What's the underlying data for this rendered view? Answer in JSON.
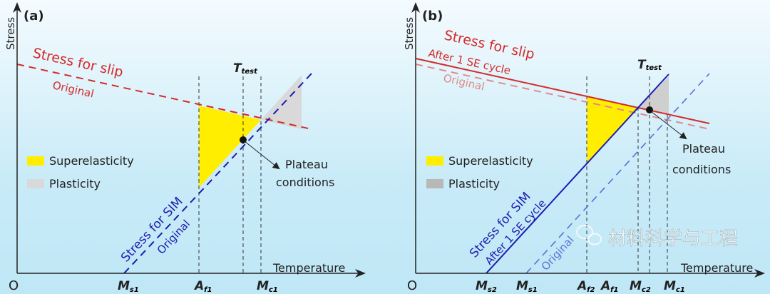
{
  "panel_a": {
    "label": "(a)",
    "y_axis": "Stress",
    "x_axis": "Temperature",
    "origin": "O",
    "slip_label": "Stress for slip",
    "slip_original": "Original",
    "sim_label": "Stress for SIM",
    "sim_original": "Original",
    "t_test": {
      "main": "T",
      "sub": "test"
    },
    "ticks": [
      {
        "main": "M",
        "sub": "s1"
      },
      {
        "main": "A",
        "sub": "f1"
      },
      {
        "main": "M",
        "sub": "c1"
      }
    ],
    "legend": [
      "Superelasticity",
      "Plasticity"
    ],
    "plateau": [
      "Plateau",
      "conditions"
    ]
  },
  "panel_b": {
    "label": "(b)",
    "y_axis": "Stress",
    "x_axis": "Temperature",
    "origin": "O",
    "slip_label": "Stress for slip",
    "slip_after": "After 1 SE cycle",
    "slip_original": "Original",
    "sim_label": "Stress for SIM",
    "sim_after": "After 1 SE cycle",
    "sim_original": "Original",
    "t_test": {
      "main": "T",
      "sub": "test"
    },
    "ticks": [
      {
        "main": "M",
        "sub": "s2"
      },
      {
        "main": "M",
        "sub": "s1"
      },
      {
        "main": "A",
        "sub": "f2"
      },
      {
        "main": "A",
        "sub": "f1"
      },
      {
        "main": "M",
        "sub": "c2"
      },
      {
        "main": "M",
        "sub": "c1"
      }
    ],
    "legend": [
      "Superelasticity",
      "Plasticity"
    ],
    "plateau": [
      "Plateau",
      "conditions"
    ]
  },
  "watermark": "材料科学与工程",
  "colors": {
    "slip": "#d42a2a",
    "slip_original": "#e08a8a",
    "sim": "#1c1cb0",
    "sim_original": "#5a6fd8",
    "superelasticity": "#ffee00",
    "plasticity": "#d9d9d9",
    "plasticity_b": "#b8b8b8"
  }
}
